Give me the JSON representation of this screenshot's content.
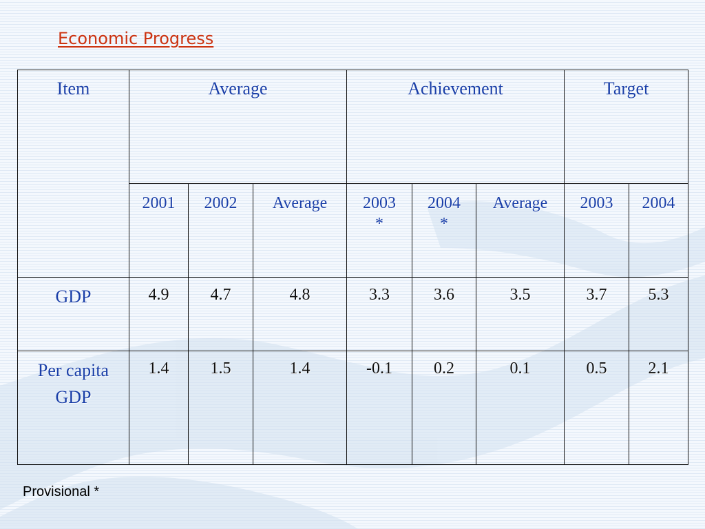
{
  "title": "Economic Progress",
  "table": {
    "header": {
      "item": "Item",
      "group_average": "Average",
      "group_achievement": "Achievement",
      "group_target": "Target"
    },
    "subheaders": [
      "2001",
      "2002",
      "Average",
      "2003\n*",
      "2004\n*",
      "Average",
      "2003",
      "2004"
    ],
    "rows": [
      {
        "label": "GDP",
        "values": [
          "4.9",
          "4.7",
          "4.8",
          "3.3",
          "3.6",
          "3.5",
          "3.7",
          "5.3"
        ]
      },
      {
        "label": "Per capita GDP",
        "values": [
          "1.4",
          "1.5",
          "1.4",
          "-0.1",
          "0.2",
          "0.1",
          "0.5",
          "2.1"
        ]
      }
    ]
  },
  "footnote": "Provisional *"
}
